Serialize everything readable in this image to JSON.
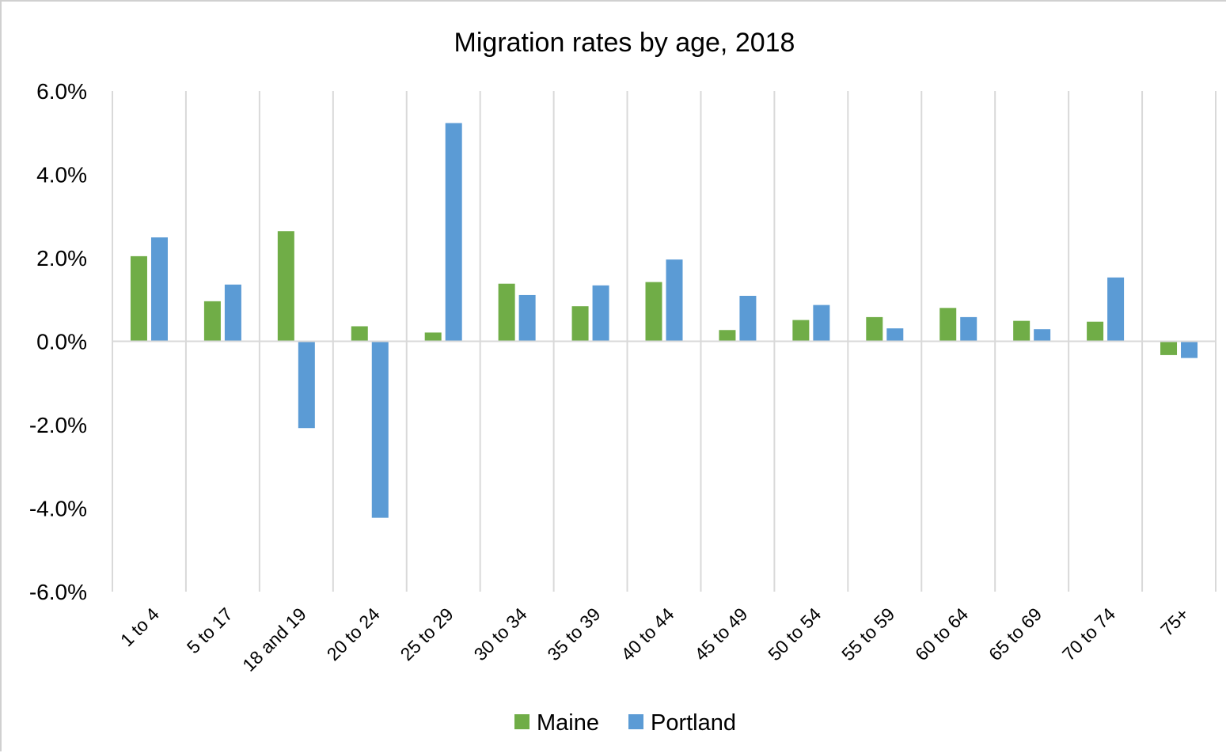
{
  "chart_data": {
    "type": "bar",
    "title": "Migration rates by age, 2018",
    "xlabel": "",
    "ylabel": "",
    "ylim": [
      -0.06,
      0.06
    ],
    "yticks": [
      0.06,
      0.04,
      0.02,
      0.0,
      -0.02,
      -0.04,
      -0.06
    ],
    "ytick_labels": [
      "6.0%",
      "4.0%",
      "2.0%",
      "0.0%",
      "-2.0%",
      "-4.0%",
      "-6.0%"
    ],
    "grid": "vertical",
    "legend": "bottom",
    "categories": [
      "1 to 4",
      "5 to 17",
      "18 and 19",
      "20 to 24",
      "25 to 29",
      "30 to 34",
      "35 to 39",
      "40 to 44",
      "45 to 49",
      "50 to 54",
      "55 to 59",
      "60 to 64",
      "65 to 69",
      "70 to 74",
      "75+"
    ],
    "series": [
      {
        "name": "Maine",
        "color": "#70ad47",
        "values": [
          0.0204,
          0.0096,
          0.0264,
          0.0036,
          0.0021,
          0.0138,
          0.0084,
          0.0142,
          0.0027,
          0.0051,
          0.0058,
          0.008,
          0.0049,
          0.0047,
          -0.0033
        ]
      },
      {
        "name": "Portland",
        "color": "#5b9bd5",
        "values": [
          0.0249,
          0.0136,
          -0.0208,
          -0.0423,
          0.0523,
          0.0111,
          0.0134,
          0.0196,
          0.0109,
          0.0087,
          0.0031,
          0.0058,
          0.0029,
          0.0153,
          -0.004
        ]
      }
    ]
  }
}
